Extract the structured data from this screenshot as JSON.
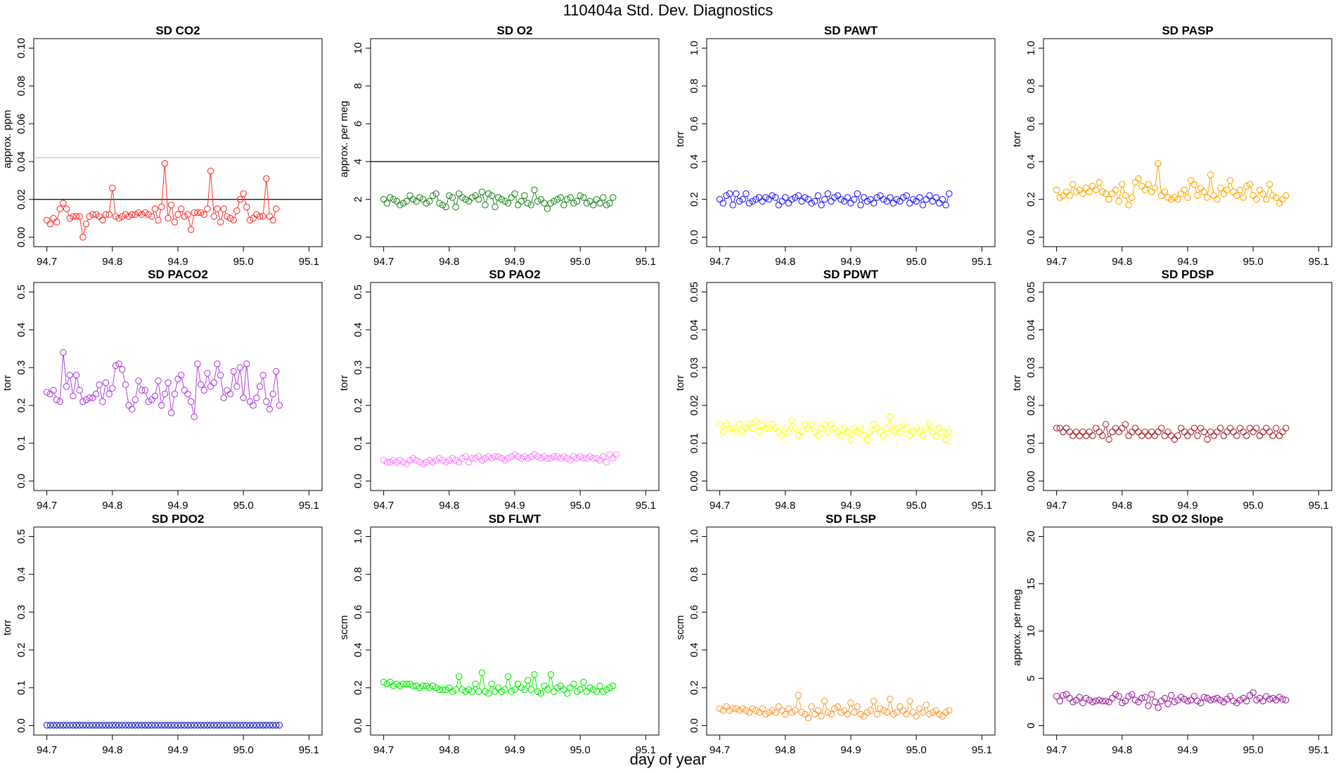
{
  "title": "110404a   Std. Dev. Diagnostics",
  "xlabel": "day of year",
  "colors": {
    "red": "#ff3030",
    "darkgreen": "#228b22",
    "blue": "#2020ff",
    "orange": "#ffa500",
    "purple": "#b040e0",
    "pink": "#ff80ff",
    "yellow": "#ffff00",
    "brown": "#a52a2a",
    "navy": "#2020c0",
    "green": "#00ee00",
    "darkorange": "#ff9933",
    "magenta": "#a020a0",
    "gray": "#c8c8c8",
    "black": "#000000"
  },
  "chart_data": [
    {
      "type": "scatter",
      "title": "SD CO2",
      "ylabel": "approx. ppm",
      "xlim": [
        94.68,
        95.12
      ],
      "ylim": [
        -0.005,
        0.105
      ],
      "xticks": [
        "94.7",
        "94.8",
        "94.9",
        "95.0",
        "95.1"
      ],
      "yticks": [
        "0.00",
        "0.02",
        "0.04",
        "0.06",
        "0.08",
        "0.10"
      ],
      "color": "#ff3030",
      "hlines": [
        {
          "y": 0.02,
          "color": "#000000"
        },
        {
          "y": 0.042,
          "color": "#c8c8c8"
        }
      ],
      "x0": 94.7,
      "dx": 0.005,
      "values": [
        0.009,
        0.007,
        0.01,
        0.008,
        0.015,
        0.018,
        0.015,
        0.01,
        0.011,
        0.011,
        0.011,
        0.0,
        0.007,
        0.011,
        0.012,
        0.012,
        0.011,
        0.009,
        0.012,
        0.012,
        0.026,
        0.011,
        0.01,
        0.011,
        0.012,
        0.011,
        0.012,
        0.012,
        0.013,
        0.012,
        0.013,
        0.012,
        0.011,
        0.015,
        0.009,
        0.016,
        0.039,
        0.01,
        0.017,
        0.008,
        0.012,
        0.015,
        0.011,
        0.012,
        0.004,
        0.013,
        0.013,
        0.013,
        0.012,
        0.015,
        0.035,
        0.011,
        0.015,
        0.008,
        0.015,
        0.011,
        0.01,
        0.009,
        0.014,
        0.02,
        0.023,
        0.016,
        0.009,
        0.01,
        0.012,
        0.011,
        0.011,
        0.031,
        0.011,
        0.009,
        0.015
      ]
    },
    {
      "type": "scatter",
      "title": "SD O2",
      "ylabel": "approx. per meg",
      "xlim": [
        94.68,
        95.12
      ],
      "ylim": [
        -0.5,
        10.5
      ],
      "xticks": [
        "94.7",
        "94.8",
        "94.9",
        "95.0",
        "95.1"
      ],
      "yticks": [
        "0",
        "2",
        "4",
        "6",
        "8",
        "10"
      ],
      "color": "#228b22",
      "hlines": [
        {
          "y": 4,
          "color": "#000000"
        }
      ],
      "x0": 94.7,
      "dx": 0.005,
      "values": [
        2.0,
        1.8,
        2.1,
        2.0,
        1.9,
        1.7,
        1.8,
        1.9,
        2.2,
        2.0,
        1.9,
        2.1,
        2.0,
        1.8,
        1.9,
        2.2,
        2.3,
        1.8,
        1.7,
        1.6,
        2.2,
        2.1,
        1.6,
        2.3,
        2.1,
        2.0,
        1.9,
        2.1,
        2.2,
        2.0,
        2.4,
        1.7,
        2.3,
        2.2,
        1.6,
        2.1,
        2.0,
        1.9,
        1.8,
        2.1,
        2.3,
        1.7,
        1.9,
        2.2,
        1.8,
        1.7,
        2.5,
        1.9,
        2.0,
        1.8,
        1.5,
        1.8,
        1.9,
        2.0,
        2.1,
        1.7,
        2.0,
        2.1,
        1.8,
        1.9,
        2.2,
        2.1,
        1.8,
        1.9,
        1.7,
        2.0,
        1.8,
        2.1,
        1.7,
        1.8,
        2.1
      ]
    },
    {
      "type": "scatter",
      "title": "SD PAWT",
      "ylabel": "torr",
      "xlim": [
        94.68,
        95.12
      ],
      "ylim": [
        -0.05,
        1.05
      ],
      "xticks": [
        "94.7",
        "94.8",
        "94.9",
        "95.0",
        "95.1"
      ],
      "yticks": [
        "0.0",
        "0.2",
        "0.4",
        "0.6",
        "0.8",
        "1.0"
      ],
      "color": "#2020ff",
      "hlines": [],
      "x0": 94.7,
      "dx": 0.005,
      "values": [
        0.2,
        0.18,
        0.22,
        0.23,
        0.17,
        0.23,
        0.19,
        0.2,
        0.23,
        0.18,
        0.19,
        0.2,
        0.21,
        0.19,
        0.21,
        0.2,
        0.22,
        0.21,
        0.17,
        0.19,
        0.21,
        0.18,
        0.2,
        0.21,
        0.22,
        0.19,
        0.21,
        0.2,
        0.18,
        0.19,
        0.22,
        0.17,
        0.2,
        0.23,
        0.19,
        0.21,
        0.22,
        0.2,
        0.19,
        0.21,
        0.18,
        0.2,
        0.23,
        0.17,
        0.21,
        0.19,
        0.2,
        0.18,
        0.21,
        0.22,
        0.2,
        0.19,
        0.21,
        0.18,
        0.2,
        0.19,
        0.21,
        0.22,
        0.18,
        0.2,
        0.19,
        0.21,
        0.17,
        0.2,
        0.22,
        0.19,
        0.21,
        0.18,
        0.2,
        0.17,
        0.23
      ]
    },
    {
      "type": "scatter",
      "title": "SD PASP",
      "ylabel": "torr",
      "xlim": [
        94.68,
        95.12
      ],
      "ylim": [
        -0.05,
        1.05
      ],
      "xticks": [
        "94.7",
        "94.8",
        "94.9",
        "95.0",
        "95.1"
      ],
      "yticks": [
        "0.0",
        "0.2",
        "0.4",
        "0.6",
        "0.8",
        "1.0"
      ],
      "color": "#ffa500",
      "hlines": [],
      "x0": 94.7,
      "dx": 0.005,
      "values": [
        0.25,
        0.21,
        0.22,
        0.24,
        0.22,
        0.28,
        0.24,
        0.25,
        0.23,
        0.26,
        0.24,
        0.27,
        0.25,
        0.29,
        0.24,
        0.23,
        0.2,
        0.23,
        0.25,
        0.19,
        0.28,
        0.22,
        0.17,
        0.21,
        0.29,
        0.31,
        0.27,
        0.25,
        0.28,
        0.24,
        0.26,
        0.39,
        0.22,
        0.24,
        0.21,
        0.2,
        0.21,
        0.2,
        0.23,
        0.25,
        0.21,
        0.3,
        0.28,
        0.22,
        0.26,
        0.24,
        0.21,
        0.33,
        0.22,
        0.2,
        0.26,
        0.23,
        0.25,
        0.3,
        0.24,
        0.22,
        0.25,
        0.21,
        0.27,
        0.28,
        0.22,
        0.2,
        0.25,
        0.23,
        0.2,
        0.28,
        0.22,
        0.21,
        0.18,
        0.2,
        0.22
      ]
    },
    {
      "type": "scatter",
      "title": "SD PACO2",
      "ylabel": "torr",
      "xlim": [
        94.68,
        95.12
      ],
      "ylim": [
        -0.025,
        0.525
      ],
      "xticks": [
        "94.7",
        "94.8",
        "94.9",
        "95.0",
        "95.1"
      ],
      "yticks": [
        "0.0",
        "0.1",
        "0.2",
        "0.3",
        "0.4",
        "0.5"
      ],
      "color": "#b040e0",
      "hlines": [],
      "x0": 94.7,
      "dx": 0.005,
      "values": [
        0.235,
        0.23,
        0.24,
        0.215,
        0.21,
        0.34,
        0.25,
        0.28,
        0.225,
        0.28,
        0.24,
        0.21,
        0.215,
        0.22,
        0.22,
        0.23,
        0.255,
        0.21,
        0.26,
        0.23,
        0.245,
        0.305,
        0.31,
        0.295,
        0.255,
        0.2,
        0.19,
        0.215,
        0.265,
        0.24,
        0.24,
        0.21,
        0.215,
        0.225,
        0.265,
        0.2,
        0.23,
        0.26,
        0.18,
        0.23,
        0.27,
        0.28,
        0.24,
        0.23,
        0.21,
        0.17,
        0.31,
        0.255,
        0.24,
        0.285,
        0.25,
        0.26,
        0.31,
        0.28,
        0.22,
        0.24,
        0.23,
        0.29,
        0.25,
        0.3,
        0.22,
        0.31,
        0.21,
        0.2,
        0.22,
        0.25,
        0.28,
        0.21,
        0.19,
        0.23,
        0.29,
        0.2
      ]
    },
    {
      "type": "scatter",
      "title": "SD PAO2",
      "ylabel": "torr",
      "xlim": [
        94.68,
        95.12
      ],
      "ylim": [
        -0.025,
        0.525
      ],
      "xticks": [
        "94.7",
        "94.8",
        "94.9",
        "95.0",
        "95.1"
      ],
      "yticks": [
        "0.0",
        "0.1",
        "0.2",
        "0.3",
        "0.4",
        "0.5"
      ],
      "color": "#ff80ff",
      "hlines": [],
      "x0": 94.7,
      "dx": 0.005,
      "values": [
        0.055,
        0.05,
        0.05,
        0.055,
        0.05,
        0.055,
        0.05,
        0.045,
        0.055,
        0.06,
        0.055,
        0.05,
        0.045,
        0.05,
        0.055,
        0.05,
        0.055,
        0.06,
        0.055,
        0.05,
        0.055,
        0.06,
        0.055,
        0.05,
        0.06,
        0.065,
        0.05,
        0.06,
        0.06,
        0.065,
        0.055,
        0.06,
        0.065,
        0.06,
        0.065,
        0.065,
        0.06,
        0.055,
        0.06,
        0.065,
        0.07,
        0.065,
        0.06,
        0.065,
        0.06,
        0.065,
        0.07,
        0.065,
        0.06,
        0.065,
        0.06,
        0.06,
        0.065,
        0.065,
        0.06,
        0.065,
        0.06,
        0.055,
        0.065,
        0.06,
        0.065,
        0.06,
        0.06,
        0.065,
        0.06,
        0.06,
        0.055,
        0.065,
        0.05,
        0.07,
        0.06,
        0.07
      ]
    },
    {
      "type": "scatter",
      "title": "SD PDWT",
      "ylabel": "torr",
      "xlim": [
        94.68,
        95.12
      ],
      "ylim": [
        -0.0025,
        0.0525
      ],
      "xticks": [
        "94.7",
        "94.8",
        "94.9",
        "95.0",
        "95.1"
      ],
      "yticks": [
        "0.00",
        "0.01",
        "0.02",
        "0.03",
        "0.04",
        "0.05"
      ],
      "color": "#ffff00",
      "hlines": [],
      "x0": 94.7,
      "dx": 0.005,
      "values": [
        0.015,
        0.013,
        0.015,
        0.014,
        0.014,
        0.013,
        0.015,
        0.013,
        0.014,
        0.015,
        0.014,
        0.016,
        0.013,
        0.015,
        0.014,
        0.014,
        0.015,
        0.014,
        0.013,
        0.012,
        0.014,
        0.013,
        0.016,
        0.014,
        0.012,
        0.013,
        0.015,
        0.014,
        0.015,
        0.013,
        0.012,
        0.014,
        0.015,
        0.013,
        0.015,
        0.014,
        0.013,
        0.012,
        0.014,
        0.013,
        0.011,
        0.014,
        0.013,
        0.014,
        0.012,
        0.011,
        0.013,
        0.015,
        0.014,
        0.013,
        0.012,
        0.014,
        0.017,
        0.013,
        0.014,
        0.013,
        0.015,
        0.014,
        0.012,
        0.013,
        0.014,
        0.013,
        0.012,
        0.014,
        0.015,
        0.013,
        0.012,
        0.014,
        0.013,
        0.011,
        0.013
      ]
    },
    {
      "type": "scatter",
      "title": "SD PDSP",
      "ylabel": "torr",
      "xlim": [
        94.68,
        95.12
      ],
      "ylim": [
        -0.0025,
        0.0525
      ],
      "xticks": [
        "94.7",
        "94.8",
        "94.9",
        "95.0",
        "95.1"
      ],
      "yticks": [
        "0.00",
        "0.01",
        "0.02",
        "0.03",
        "0.04",
        "0.05"
      ],
      "color": "#a52a2a",
      "hlines": [],
      "x0": 94.7,
      "dx": 0.005,
      "values": [
        0.014,
        0.014,
        0.013,
        0.014,
        0.013,
        0.012,
        0.013,
        0.012,
        0.013,
        0.012,
        0.013,
        0.012,
        0.014,
        0.013,
        0.012,
        0.015,
        0.011,
        0.013,
        0.014,
        0.013,
        0.014,
        0.015,
        0.012,
        0.013,
        0.014,
        0.013,
        0.012,
        0.013,
        0.012,
        0.013,
        0.012,
        0.013,
        0.014,
        0.012,
        0.013,
        0.012,
        0.011,
        0.012,
        0.014,
        0.013,
        0.012,
        0.013,
        0.014,
        0.012,
        0.014,
        0.013,
        0.011,
        0.013,
        0.012,
        0.013,
        0.014,
        0.012,
        0.013,
        0.014,
        0.013,
        0.012,
        0.014,
        0.013,
        0.012,
        0.014,
        0.013,
        0.014,
        0.012,
        0.013,
        0.014,
        0.013,
        0.012,
        0.014,
        0.012,
        0.013,
        0.014
      ]
    },
    {
      "type": "scatter",
      "title": "SD PDO2",
      "ylabel": "torr",
      "xlim": [
        94.68,
        95.12
      ],
      "ylim": [
        -0.025,
        0.525
      ],
      "xticks": [
        "94.7",
        "94.8",
        "94.9",
        "95.0",
        "95.1"
      ],
      "yticks": [
        "0.0",
        "0.1",
        "0.2",
        "0.3",
        "0.4",
        "0.5"
      ],
      "color": "#2020c0",
      "hlines": [],
      "x0": 94.7,
      "dx": 0.005,
      "values": [
        0.001,
        0.001,
        0.001,
        0.001,
        0.001,
        0.001,
        0.001,
        0.001,
        0.001,
        0.001,
        0.001,
        0.001,
        0.001,
        0.001,
        0.001,
        0.001,
        0.001,
        0.001,
        0.001,
        0.001,
        0.001,
        0.001,
        0.001,
        0.001,
        0.001,
        0.001,
        0.001,
        0.001,
        0.001,
        0.001,
        0.001,
        0.001,
        0.001,
        0.001,
        0.001,
        0.001,
        0.001,
        0.001,
        0.001,
        0.001,
        0.001,
        0.001,
        0.001,
        0.001,
        0.001,
        0.001,
        0.001,
        0.001,
        0.001,
        0.001,
        0.001,
        0.001,
        0.001,
        0.001,
        0.001,
        0.001,
        0.001,
        0.001,
        0.001,
        0.001,
        0.001,
        0.001,
        0.001,
        0.001,
        0.001,
        0.001,
        0.001,
        0.001,
        0.001,
        0.001,
        0.001,
        0.001
      ]
    },
    {
      "type": "scatter",
      "title": "SD FLWT",
      "ylabel": "sccm",
      "xlim": [
        94.68,
        95.12
      ],
      "ylim": [
        -0.05,
        1.05
      ],
      "xticks": [
        "94.7",
        "94.8",
        "94.9",
        "95.0",
        "95.1"
      ],
      "yticks": [
        "0.0",
        "0.2",
        "0.4",
        "0.6",
        "0.8",
        "1.0"
      ],
      "color": "#00ee00",
      "hlines": [],
      "x0": 94.7,
      "dx": 0.005,
      "values": [
        0.23,
        0.22,
        0.23,
        0.21,
        0.22,
        0.21,
        0.22,
        0.22,
        0.22,
        0.21,
        0.21,
        0.2,
        0.21,
        0.21,
        0.2,
        0.21,
        0.2,
        0.19,
        0.19,
        0.19,
        0.2,
        0.18,
        0.19,
        0.26,
        0.19,
        0.18,
        0.19,
        0.18,
        0.22,
        0.18,
        0.28,
        0.18,
        0.17,
        0.22,
        0.18,
        0.2,
        0.18,
        0.19,
        0.26,
        0.18,
        0.19,
        0.22,
        0.2,
        0.19,
        0.24,
        0.19,
        0.27,
        0.18,
        0.17,
        0.21,
        0.19,
        0.27,
        0.18,
        0.2,
        0.21,
        0.19,
        0.17,
        0.2,
        0.22,
        0.18,
        0.19,
        0.23,
        0.18,
        0.2,
        0.19,
        0.18,
        0.21,
        0.18,
        0.19,
        0.2,
        0.21
      ]
    },
    {
      "type": "scatter",
      "title": "SD FLSP",
      "ylabel": "sccm",
      "xlim": [
        94.68,
        95.12
      ],
      "ylim": [
        -0.05,
        1.05
      ],
      "xticks": [
        "94.7",
        "94.8",
        "94.9",
        "95.0",
        "95.1"
      ],
      "yticks": [
        "0.0",
        "0.2",
        "0.4",
        "0.6",
        "0.8",
        "1.0"
      ],
      "color": "#ff9933",
      "hlines": [],
      "x0": 94.7,
      "dx": 0.005,
      "values": [
        0.09,
        0.08,
        0.1,
        0.08,
        0.09,
        0.09,
        0.08,
        0.09,
        0.08,
        0.07,
        0.09,
        0.08,
        0.07,
        0.09,
        0.06,
        0.07,
        0.08,
        0.07,
        0.1,
        0.08,
        0.06,
        0.09,
        0.07,
        0.08,
        0.16,
        0.07,
        0.06,
        0.04,
        0.1,
        0.06,
        0.08,
        0.05,
        0.13,
        0.07,
        0.06,
        0.09,
        0.1,
        0.07,
        0.08,
        0.06,
        0.12,
        0.07,
        0.1,
        0.06,
        0.05,
        0.07,
        0.08,
        0.13,
        0.06,
        0.09,
        0.08,
        0.07,
        0.14,
        0.06,
        0.07,
        0.1,
        0.08,
        0.06,
        0.13,
        0.07,
        0.05,
        0.09,
        0.07,
        0.11,
        0.06,
        0.07,
        0.08,
        0.06,
        0.05,
        0.07,
        0.08
      ]
    },
    {
      "type": "scatter",
      "title": "SD O2 Slope",
      "ylabel": "approx. per meg",
      "xlim": [
        94.68,
        95.12
      ],
      "ylim": [
        -1,
        21
      ],
      "xticks": [
        "94.7",
        "94.8",
        "94.9",
        "95.0",
        "95.1"
      ],
      "yticks": [
        "0",
        "5",
        "10",
        "15",
        "20"
      ],
      "color": "#a020a0",
      "hlines": [],
      "x0": 94.7,
      "dx": 0.005,
      "values": [
        3.1,
        2.6,
        3.2,
        3.3,
        2.9,
        2.5,
        2.7,
        3.0,
        2.4,
        2.9,
        2.7,
        2.5,
        2.6,
        2.7,
        2.6,
        2.6,
        2.5,
        2.9,
        3.3,
        3.1,
        2.4,
        2.6,
        3.1,
        3.3,
        2.7,
        2.5,
        2.9,
        3.0,
        2.1,
        3.3,
        2.5,
        1.9,
        2.6,
        2.9,
        2.3,
        3.2,
        2.5,
        2.7,
        3.0,
        2.8,
        2.6,
        2.7,
        3.1,
        2.6,
        2.4,
        3.0,
        2.9,
        2.7,
        2.8,
        2.9,
        2.7,
        2.5,
        2.8,
        3.1,
        2.6,
        2.4,
        2.7,
        2.9,
        2.6,
        3.2,
        3.5,
        2.7,
        2.9,
        2.6,
        3.1,
        2.8,
        2.9,
        2.7,
        3.0,
        2.8,
        2.7
      ]
    }
  ]
}
